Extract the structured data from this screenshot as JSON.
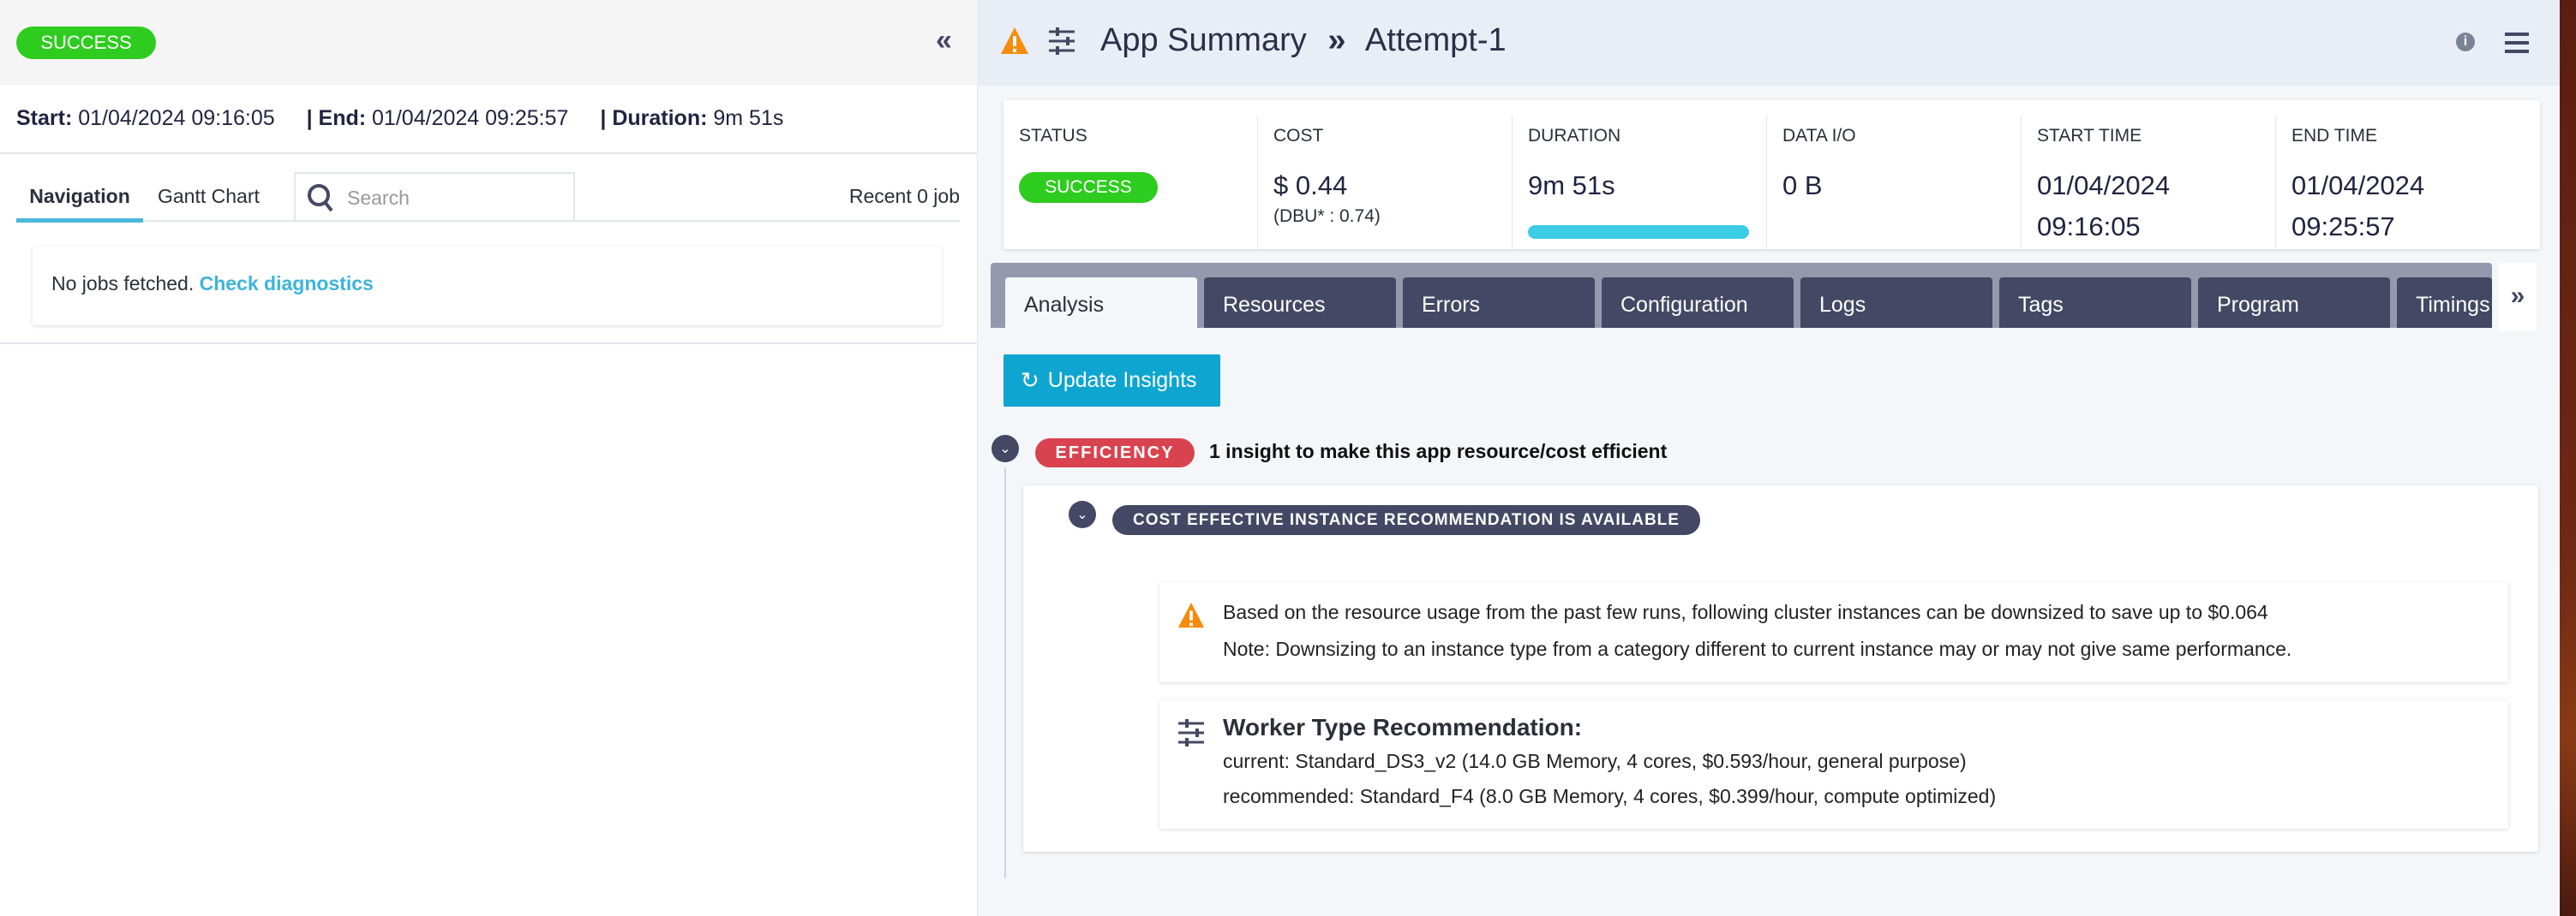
{
  "left": {
    "status": "SUCCESS",
    "collapse_icon": "double-chevron-left",
    "start_label": "Start:",
    "start_value": "01/04/2024 09:16:05",
    "end_label": "| End:",
    "end_value": "01/04/2024 09:25:57",
    "duration_label": "| Duration:",
    "duration_value": "9m 51s",
    "tabs": [
      {
        "label": "Navigation",
        "active": true
      },
      {
        "label": "Gantt Chart",
        "active": false
      }
    ],
    "search_placeholder": "Search",
    "recent": "Recent 0 job",
    "empty_text": "No jobs fetched.",
    "empty_link": "Check diagnostics"
  },
  "header": {
    "title": "App Summary",
    "separator": "»",
    "crumb": "Attempt-1"
  },
  "stats": [
    {
      "label": "STATUS",
      "value": "SUCCESS"
    },
    {
      "label": "COST",
      "value": "$ 0.44",
      "sub": "(DBU* : 0.74)"
    },
    {
      "label": "DURATION",
      "value": "9m 51s",
      "progress": 100
    },
    {
      "label": "DATA I/O",
      "value": "0 B"
    },
    {
      "label": "START TIME",
      "value": "01/04/2024",
      "sub": "09:16:05"
    },
    {
      "label": "END TIME",
      "value": "01/04/2024",
      "sub": "09:25:57"
    }
  ],
  "tabs": [
    {
      "label": "Analysis",
      "active": true
    },
    {
      "label": "Resources"
    },
    {
      "label": "Errors"
    },
    {
      "label": "Configuration"
    },
    {
      "label": "Logs"
    },
    {
      "label": "Tags"
    },
    {
      "label": "Program"
    },
    {
      "label": "Timings"
    }
  ],
  "tabs_more": "»",
  "update_button": "Update Insights",
  "insight": {
    "badge": "EFFICIENCY",
    "summary": "1 insight to make this app resource/cost efficient",
    "sub_badge": "COST EFFECTIVE INSTANCE RECOMMENDATION IS AVAILABLE",
    "warning_line1": "Based on the resource usage from the past few runs, following cluster instances can be downsized to save up to $0.064",
    "warning_line2": "Note: Downsizing to an instance type from a category different to current instance may or may not give same performance.",
    "worker_title": "Worker Type Recommendation:",
    "current": "current: Standard_DS3_v2 (14.0 GB Memory, 4 cores, $0.593/hour, general purpose)",
    "recommended": "recommended: Standard_F4 (8.0 GB Memory, 4 cores, $0.399/hour, compute optimized)"
  },
  "colors": {
    "success": "#2ecc1f",
    "efficiency": "#d9434f",
    "accent": "#0ea5d0",
    "tab_dark": "#444864",
    "progress": "#3ccde6",
    "warning": "#f68b0c"
  }
}
